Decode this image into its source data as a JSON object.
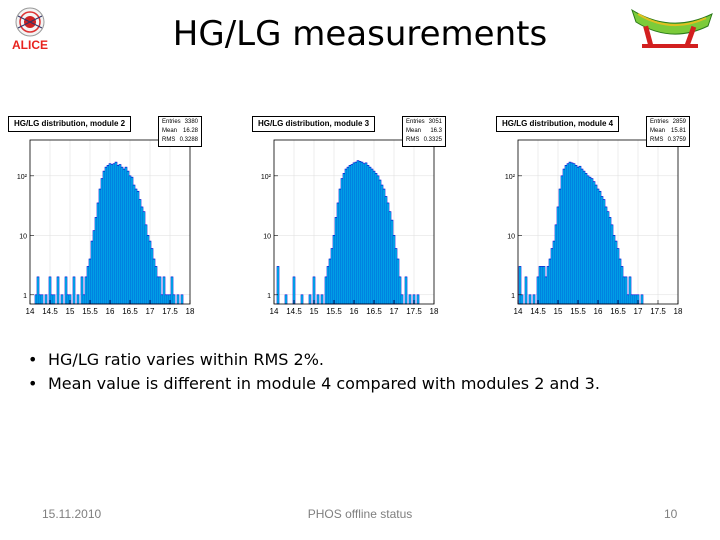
{
  "header": {
    "title": "HG/LG measurements",
    "alice_logo_text": "ALICE"
  },
  "colors": {
    "histogram_fill": "#00E0F0",
    "histogram_edge": "#0000CC",
    "alice_red": "#E8231E",
    "phos_green": "#7CCB3A"
  },
  "chart_data": [
    {
      "type": "bar",
      "title": "HG/LG distribution, module 2",
      "stats": {
        "Entries": "3380",
        "Mean": "16.28",
        "RMS": "0.3288"
      },
      "x_range": [
        14,
        18
      ],
      "y_log": true,
      "x_ticks": [
        "14",
        "14.5",
        "15",
        "15.5",
        "16",
        "16.5",
        "17",
        "17.5",
        "18"
      ],
      "y_ticks": [
        "1",
        "10",
        "10²"
      ],
      "bin_width": 0.05,
      "x": [
        14.15,
        14.2,
        14.25,
        14.3,
        14.4,
        14.5,
        14.55,
        14.6,
        14.7,
        14.8,
        14.9,
        14.95,
        15.0,
        15.1,
        15.2,
        15.3,
        15.35,
        15.4,
        15.45,
        15.5,
        15.55,
        15.6,
        15.65,
        15.7,
        15.75,
        15.8,
        15.85,
        15.9,
        15.95,
        16.0,
        16.05,
        16.1,
        16.15,
        16.2,
        16.25,
        16.3,
        16.35,
        16.4,
        16.45,
        16.5,
        16.55,
        16.6,
        16.65,
        16.7,
        16.75,
        16.8,
        16.85,
        16.9,
        16.95,
        17.0,
        17.05,
        17.1,
        17.15,
        17.2,
        17.25,
        17.3,
        17.35,
        17.4,
        17.45,
        17.5,
        17.55,
        17.6,
        17.7,
        17.8
      ],
      "values": [
        1,
        2,
        1,
        1,
        1,
        2,
        1,
        1,
        2,
        1,
        2,
        1,
        1,
        2,
        1,
        2,
        1,
        2,
        3,
        4,
        8,
        12,
        20,
        35,
        60,
        90,
        120,
        140,
        150,
        160,
        155,
        160,
        170,
        150,
        155,
        140,
        130,
        140,
        120,
        100,
        95,
        70,
        60,
        55,
        40,
        30,
        25,
        15,
        10,
        8,
        6,
        4,
        3,
        2,
        2,
        1,
        2,
        1,
        1,
        1,
        2,
        1,
        1,
        1
      ]
    },
    {
      "type": "bar",
      "title": "HG/LG distribution, module 3",
      "stats": {
        "Entries": "3051",
        "Mean": "16.3",
        "RMS": "0.3325"
      },
      "x_range": [
        14,
        18
      ],
      "y_log": true,
      "x_ticks": [
        "14",
        "14.5",
        "15",
        "15.5",
        "16",
        "16.5",
        "17",
        "17.5",
        "18"
      ],
      "y_ticks": [
        "1",
        "10",
        "10²"
      ],
      "bin_width": 0.05,
      "x": [
        14.1,
        14.3,
        14.5,
        14.7,
        14.9,
        15.0,
        15.1,
        15.2,
        15.3,
        15.35,
        15.4,
        15.45,
        15.5,
        15.55,
        15.6,
        15.65,
        15.7,
        15.75,
        15.8,
        15.85,
        15.9,
        15.95,
        16.0,
        16.05,
        16.1,
        16.15,
        16.2,
        16.25,
        16.3,
        16.35,
        16.4,
        16.45,
        16.5,
        16.55,
        16.6,
        16.65,
        16.7,
        16.75,
        16.8,
        16.85,
        16.9,
        16.95,
        17.0,
        17.05,
        17.1,
        17.15,
        17.2,
        17.3,
        17.4,
        17.5,
        17.6
      ],
      "values": [
        3,
        1,
        2,
        1,
        1,
        2,
        1,
        1,
        2,
        3,
        4,
        6,
        10,
        20,
        35,
        60,
        90,
        110,
        130,
        140,
        150,
        155,
        165,
        170,
        180,
        175,
        170,
        160,
        165,
        150,
        140,
        130,
        120,
        110,
        100,
        85,
        70,
        60,
        45,
        35,
        25,
        18,
        10,
        6,
        4,
        2,
        1,
        2,
        1,
        1,
        1
      ]
    },
    {
      "type": "bar",
      "title": "HG/LG distribution, module 4",
      "stats": {
        "Entries": "2859",
        "Mean": "15.81",
        "RMS": "0.3759"
      },
      "x_range": [
        14,
        18
      ],
      "y_log": true,
      "x_ticks": [
        "14",
        "14.5",
        "15",
        "15.5",
        "16",
        "16.5",
        "17",
        "17.5",
        "18"
      ],
      "y_ticks": [
        "1",
        "10",
        "10²"
      ],
      "bin_width": 0.05,
      "x": [
        14.05,
        14.1,
        14.2,
        14.3,
        14.4,
        14.5,
        14.55,
        14.6,
        14.65,
        14.7,
        14.75,
        14.8,
        14.85,
        14.9,
        14.95,
        15.0,
        15.05,
        15.1,
        15.15,
        15.2,
        15.25,
        15.3,
        15.35,
        15.4,
        15.45,
        15.5,
        15.55,
        15.6,
        15.65,
        15.7,
        15.75,
        15.8,
        15.85,
        15.9,
        15.95,
        16.0,
        16.05,
        16.1,
        16.15,
        16.2,
        16.25,
        16.3,
        16.35,
        16.4,
        16.45,
        16.5,
        16.55,
        16.6,
        16.65,
        16.7,
        16.75,
        16.8,
        16.85,
        16.9,
        16.95,
        17.0,
        17.1
      ],
      "values": [
        3,
        1,
        2,
        1,
        1,
        2,
        3,
        3,
        3,
        2,
        3,
        4,
        6,
        8,
        15,
        30,
        60,
        100,
        130,
        150,
        160,
        170,
        165,
        160,
        150,
        140,
        145,
        130,
        120,
        110,
        100,
        95,
        90,
        80,
        70,
        60,
        55,
        45,
        40,
        30,
        25,
        20,
        15,
        10,
        8,
        6,
        4,
        3,
        2,
        2,
        1,
        2,
        1,
        1,
        1,
        1,
        1
      ]
    }
  ],
  "bullets": [
    "HG/LG ratio varies within RMS 2%.",
    "Mean value is different in module 4 compared with modules 2 and 3."
  ],
  "footer": {
    "date": "15.11.2010",
    "center": "PHOS offline status",
    "page": "10"
  }
}
